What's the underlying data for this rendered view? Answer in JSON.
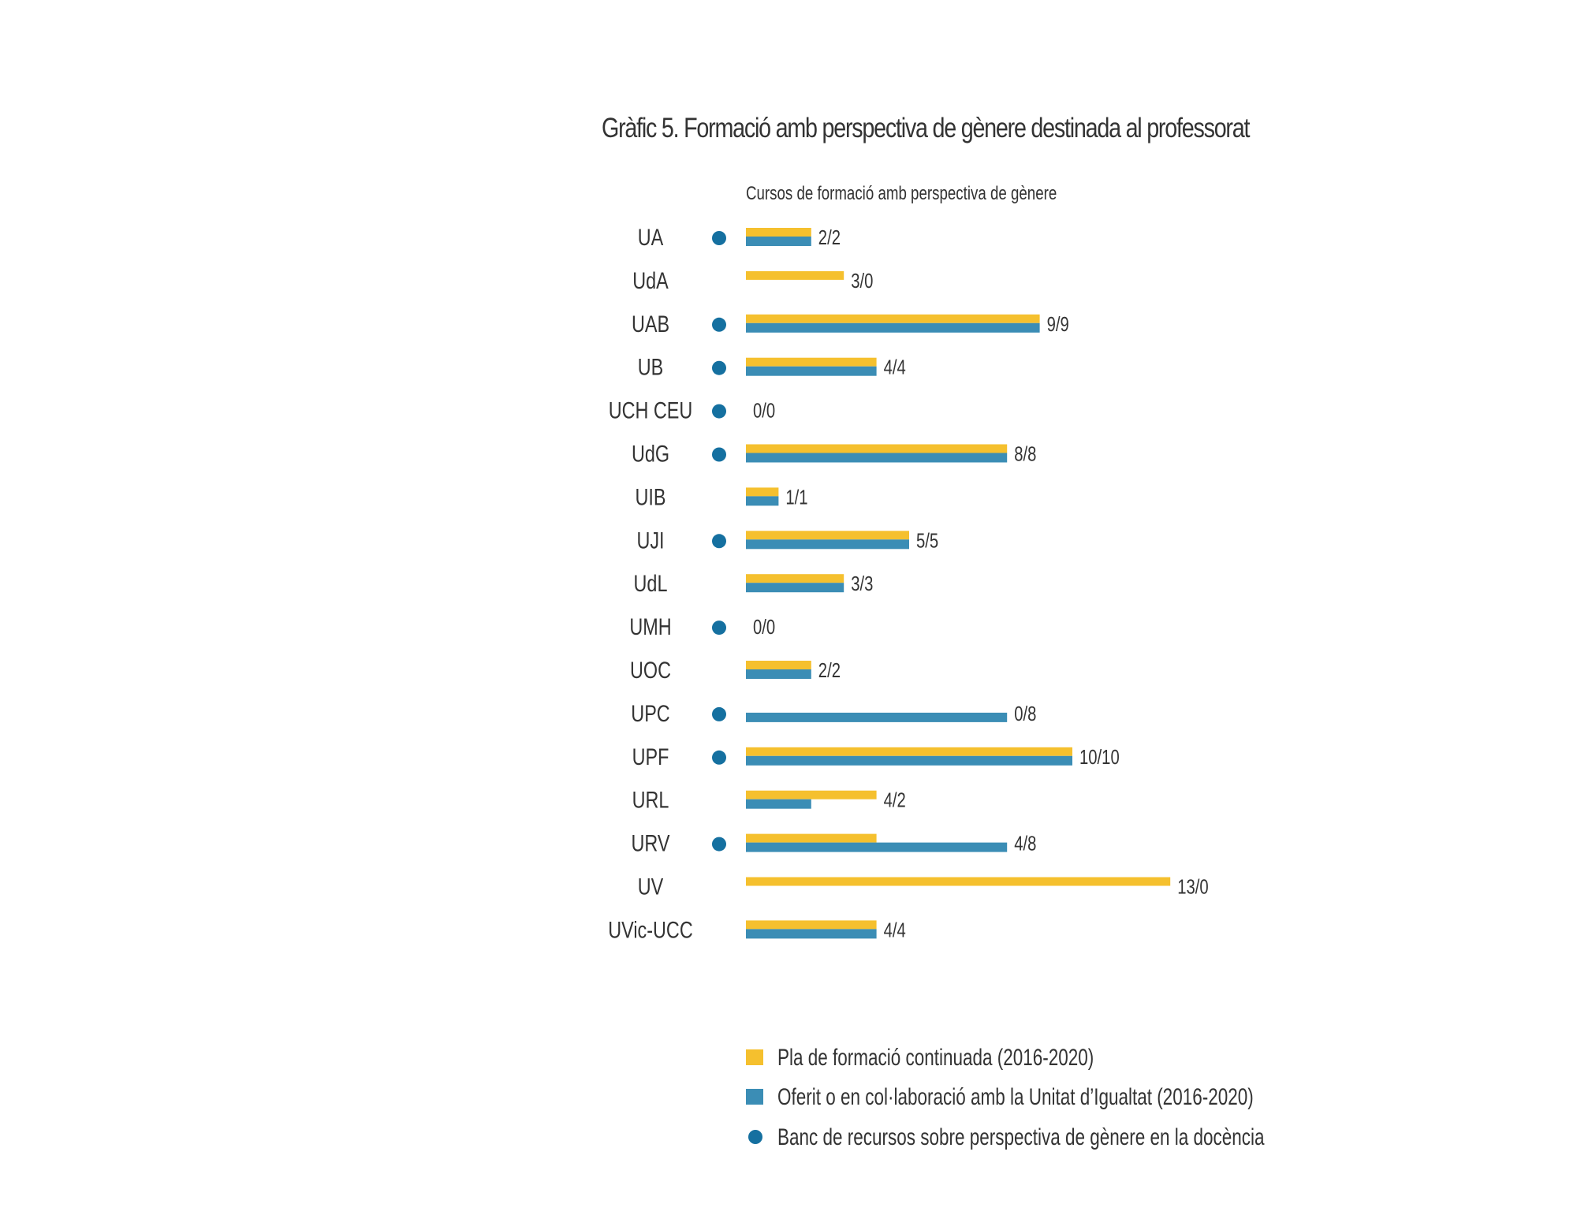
{
  "chart_data": {
    "type": "bar",
    "title": "Gràfic 5. Formació amb perspectiva de gènere destinada al professorat",
    "subtitle": "Cursos de formació amb perspectiva de gènere",
    "categories": [
      "UA",
      "UdA",
      "UAB",
      "UB",
      "UCH CEU",
      "UdG",
      "UIB",
      "UJI",
      "UdL",
      "UMH",
      "UOC",
      "UPC",
      "UPF",
      "URL",
      "URV",
      "UV",
      "UVic-UCC"
    ],
    "series": [
      {
        "name": "Pla de formació continuada (2016-2020)",
        "color": "#f5c02e",
        "values": [
          2,
          3,
          9,
          4,
          0,
          8,
          1,
          5,
          3,
          0,
          2,
          0,
          10,
          4,
          4,
          13,
          4
        ]
      },
      {
        "name": "Oferit o en col·laboració amb la Unitat d’Igualtat (2016-2020)",
        "color": "#3b8db5",
        "values": [
          2,
          0,
          9,
          4,
          0,
          8,
          1,
          5,
          3,
          0,
          2,
          8,
          10,
          2,
          8,
          0,
          4
        ]
      }
    ],
    "resource_bank": {
      "name": "Banc de recursos sobre perspectiva de gènere en la docència",
      "color": "#1570a0",
      "values": [
        true,
        false,
        true,
        true,
        true,
        true,
        false,
        true,
        false,
        true,
        false,
        true,
        true,
        false,
        true,
        false,
        false
      ]
    },
    "data_labels": [
      "2/2",
      "3/0",
      "9/9",
      "4/4",
      "0/0",
      "8/8",
      "1/1",
      "5/5",
      "3/3",
      "0/0",
      "2/2",
      "0/8",
      "10/10",
      "4/2",
      "4/8",
      "13/0",
      "4/4"
    ],
    "legend": [
      "Pla de formació continuada (2016-2020)",
      "Oferit o en col·laboració amb la Unitat d’Igualtat (2016-2020)",
      "Banc de recursos sobre perspectiva de gènere en la docència"
    ],
    "legend_position": "bottom",
    "xlim": [
      0,
      13
    ],
    "grid": false,
    "xlabel": "",
    "ylabel": ""
  }
}
